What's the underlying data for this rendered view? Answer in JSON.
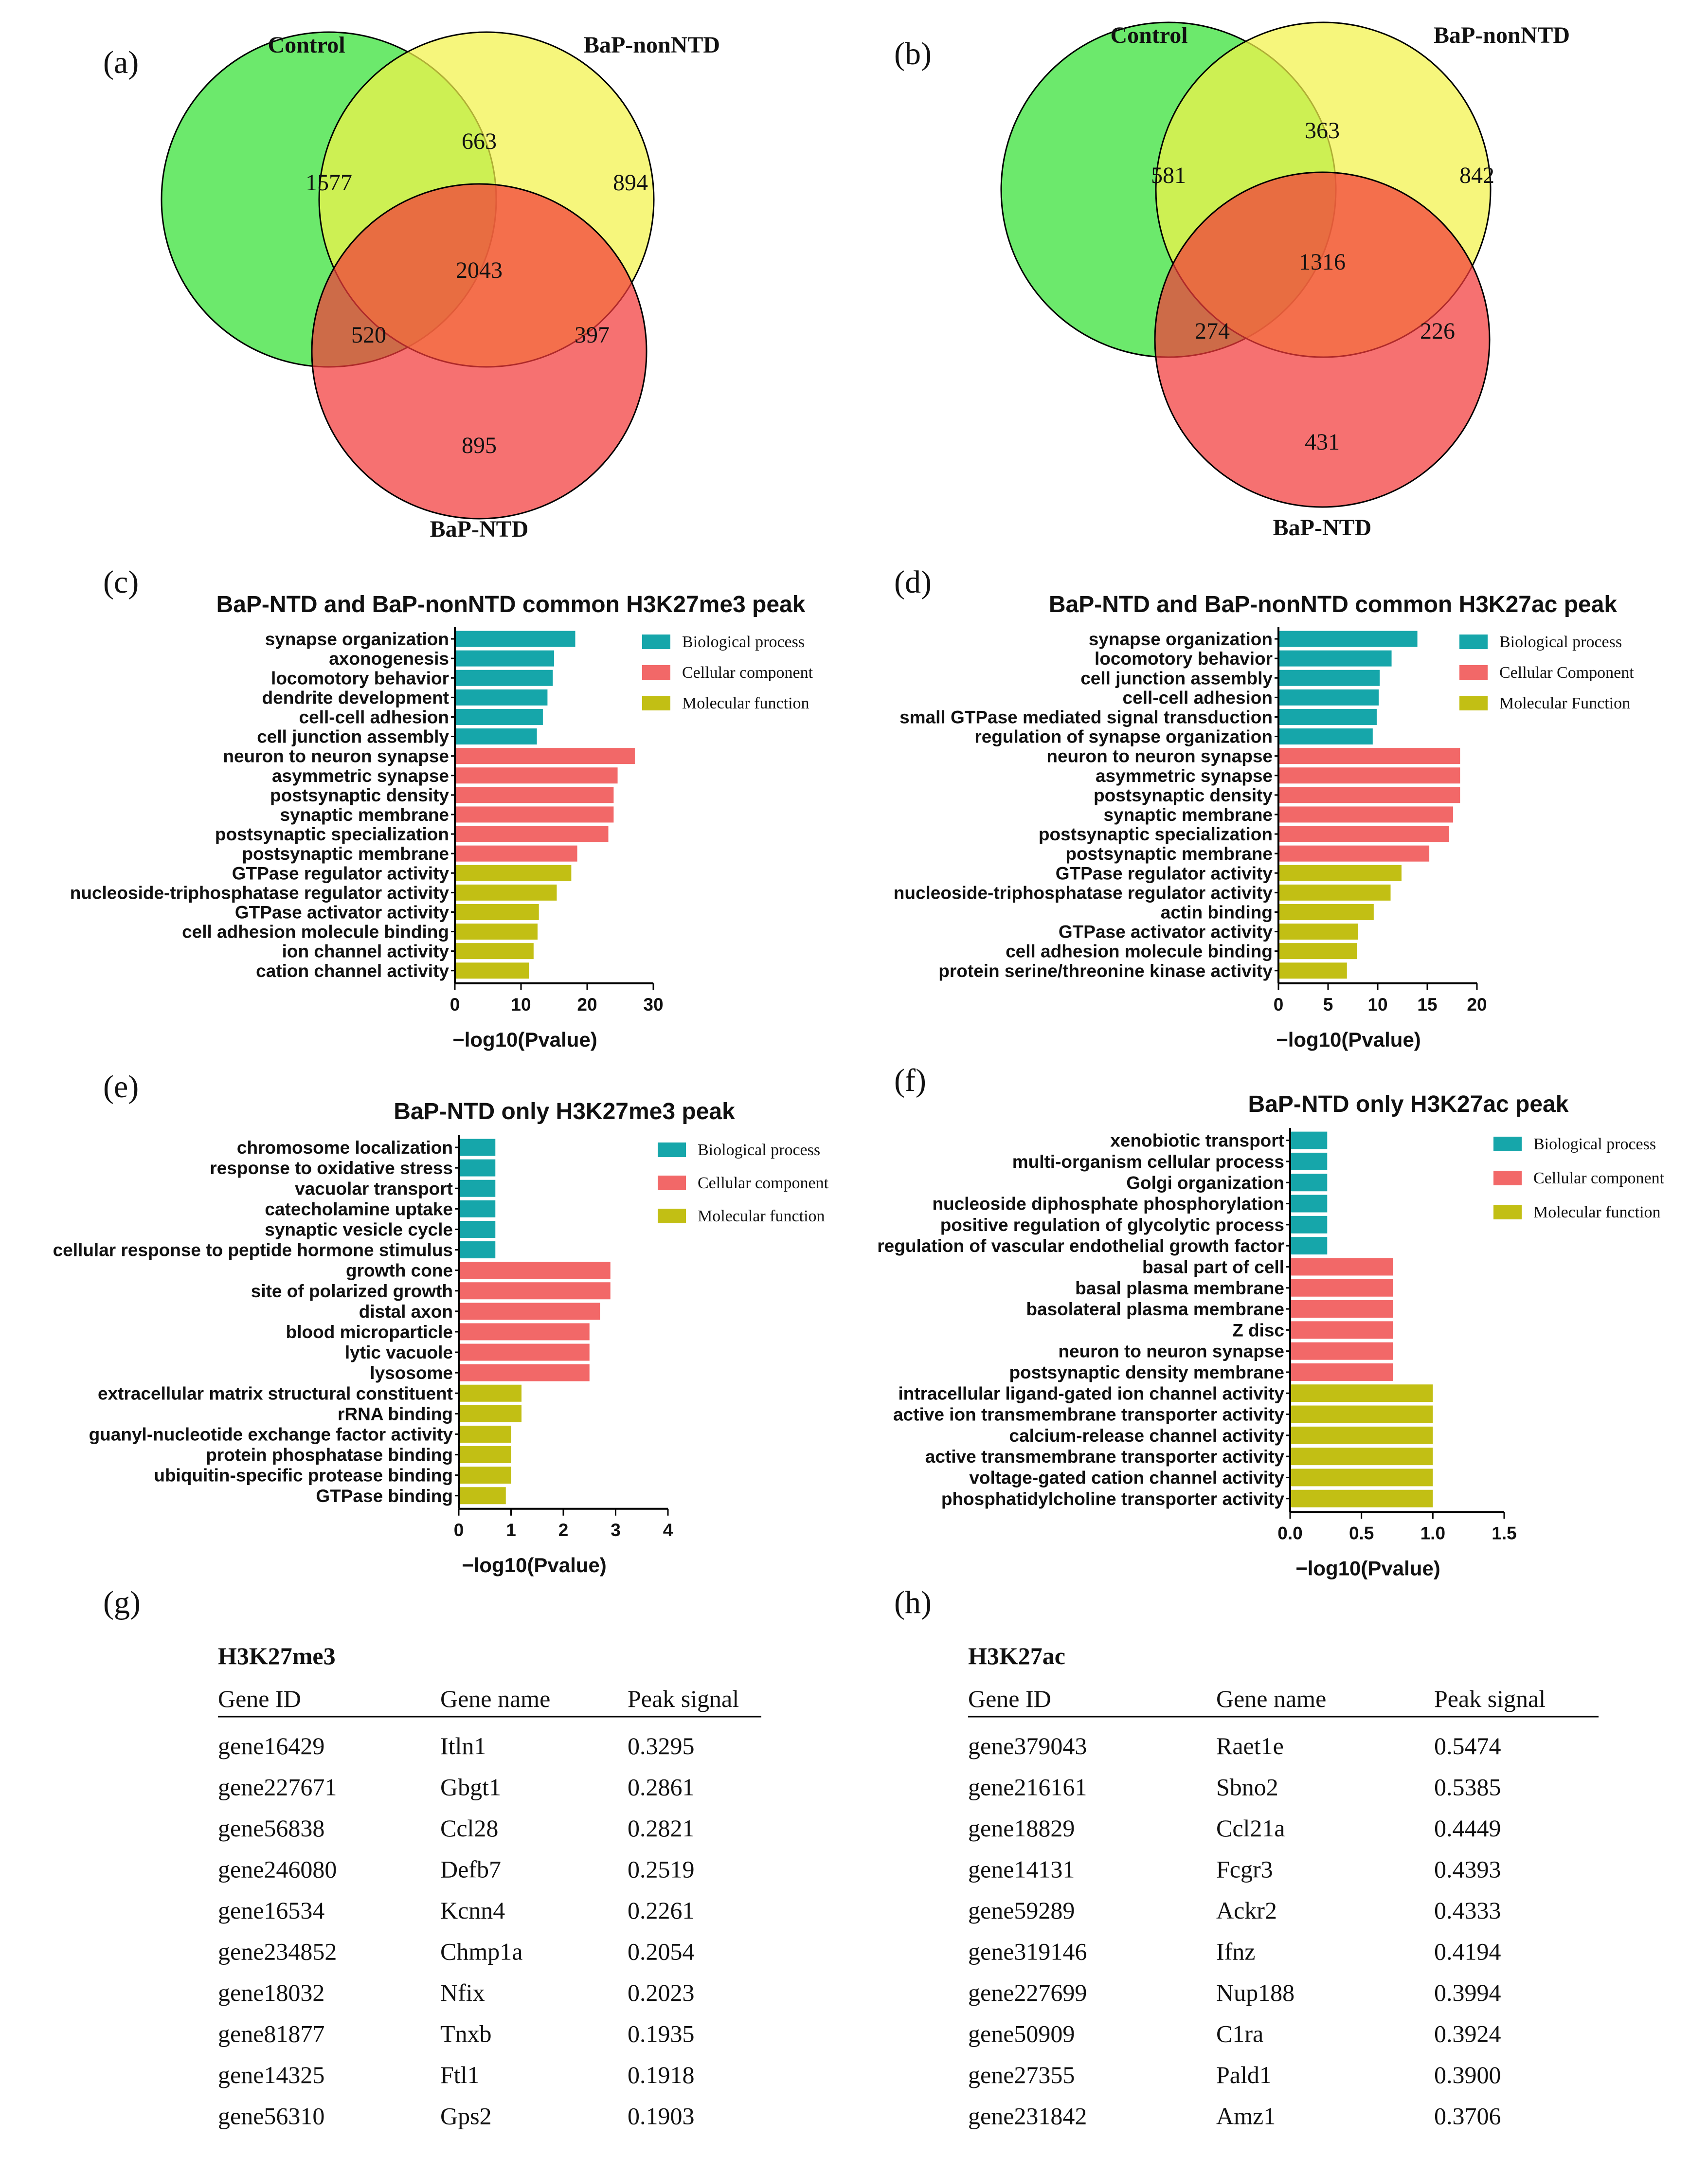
{
  "chart_data": [
    {
      "panel": "(a)",
      "type": "venn",
      "sets": [
        "Control",
        "BaP-nonNTD",
        "BaP-NTD"
      ],
      "regions": {
        "control_only": 1577,
        "nonntd_only": 894,
        "ntd_only": 895,
        "control_nonntd": 663,
        "control_ntd": 520,
        "nonntd_ntd": 397,
        "all_three": 2043
      }
    },
    {
      "panel": "(b)",
      "type": "venn",
      "sets": [
        "Control",
        "BaP-nonNTD",
        "BaP-NTD"
      ],
      "regions": {
        "control_only": 581,
        "nonntd_only": 842,
        "ntd_only": 431,
        "control_nonntd": 363,
        "control_ntd": 274,
        "nonntd_ntd": 226,
        "all_three": 1316
      }
    },
    {
      "panel": "(c)",
      "type": "bar",
      "orientation": "horizontal",
      "title": "BaP-NTD and BaP-nonNTD common H3K27me3 peak",
      "xlabel": "−log10(Pvalue)",
      "xlim": [
        0,
        30
      ],
      "xticks": [
        "0",
        "10",
        "20",
        "30"
      ],
      "legend": [
        "Biological process",
        "Cellular component",
        "Molecular function"
      ],
      "categories": [
        "synapse organization",
        "axonogenesis",
        "locomotory behavior",
        "dendrite development",
        "cell-cell adhesion",
        "cell junction assembly",
        "neuron to neuron synapse",
        "asymmetric synapse",
        "postsynaptic density",
        "synaptic membrane",
        "postsynaptic specialization",
        "postsynaptic membrane",
        "GTPase regulator activity",
        "nucleoside-triphosphatase regulator activity",
        "GTPase activator activity",
        "cell adhesion molecule binding",
        "ion channel activity",
        "cation channel activity"
      ],
      "values": [
        18.2,
        15.0,
        14.8,
        14.0,
        13.3,
        12.4,
        27.2,
        24.6,
        24.0,
        24.0,
        23.2,
        18.5,
        17.6,
        15.4,
        12.7,
        12.5,
        11.9,
        11.2
      ],
      "groups": [
        0,
        0,
        0,
        0,
        0,
        0,
        1,
        1,
        1,
        1,
        1,
        1,
        2,
        2,
        2,
        2,
        2,
        2
      ]
    },
    {
      "panel": "(d)",
      "type": "bar",
      "orientation": "horizontal",
      "title": "BaP-NTD and BaP-nonNTD common H3K27ac peak",
      "xlabel": "−log10(Pvalue)",
      "xlim": [
        0,
        20
      ],
      "xticks": [
        "0",
        "5",
        "10",
        "15",
        "20"
      ],
      "legend": [
        "Biological process",
        "Cellular Component",
        "Molecular Function"
      ],
      "categories": [
        "synapse organization",
        "locomotory behavior",
        "cell junction assembly",
        "cell-cell adhesion",
        "small GTPase mediated signal transduction",
        "regulation of synapse organization",
        "neuron to neuron synapse",
        "asymmetric synapse",
        "postsynaptic density",
        "synaptic membrane",
        "postsynaptic specialization",
        "postsynaptic membrane",
        "GTPase regulator activity",
        "nucleoside-triphosphatase regulator activity",
        "actin binding",
        "GTPase activator activity",
        "cell adhesion molecule binding",
        "protein serine/threonine kinase activity"
      ],
      "values": [
        14.0,
        11.4,
        10.2,
        10.1,
        9.9,
        9.5,
        18.3,
        18.3,
        18.3,
        17.6,
        17.2,
        15.2,
        12.4,
        11.3,
        9.6,
        8.0,
        7.9,
        6.9
      ],
      "groups": [
        0,
        0,
        0,
        0,
        0,
        0,
        1,
        1,
        1,
        1,
        1,
        1,
        2,
        2,
        2,
        2,
        2,
        2
      ]
    },
    {
      "panel": "(e)",
      "type": "bar",
      "orientation": "horizontal",
      "title": "BaP-NTD only H3K27me3 peak",
      "xlabel": "−log10(Pvalue)",
      "xlim": [
        0,
        4
      ],
      "xticks": [
        "0",
        "1",
        "2",
        "3",
        "4"
      ],
      "legend": [
        "Biological process",
        "Cellular component",
        "Molecular function"
      ],
      "categories": [
        "chromosome localization",
        "response to oxidative stress",
        "vacuolar transport",
        "catecholamine uptake",
        "synaptic vesicle cycle",
        "cellular response to peptide hormone stimulus",
        "growth cone",
        "site of polarized growth",
        "distal axon",
        "blood microparticle",
        "lytic vacuole",
        "lysosome",
        "extracellular matrix structural constituent",
        "rRNA binding",
        "guanyl-nucleotide exchange factor activity",
        "protein phosphatase binding",
        "ubiquitin-specific protease binding",
        "GTPase binding"
      ],
      "values": [
        0.7,
        0.7,
        0.7,
        0.7,
        0.7,
        0.7,
        2.9,
        2.9,
        2.7,
        2.5,
        2.5,
        2.5,
        1.2,
        1.2,
        1.0,
        1.0,
        1.0,
        0.9
      ],
      "groups": [
        0,
        0,
        0,
        0,
        0,
        0,
        1,
        1,
        1,
        1,
        1,
        1,
        2,
        2,
        2,
        2,
        2,
        2
      ]
    },
    {
      "panel": "(f)",
      "type": "bar",
      "orientation": "horizontal",
      "title": "BaP-NTD only H3K27ac peak",
      "xlabel": "−log10(Pvalue)",
      "xlim": [
        0,
        1.5
      ],
      "xticks": [
        "0.0",
        "0.5",
        "1.0",
        "1.5"
      ],
      "legend": [
        "Biological process",
        "Cellular component",
        "Molecular function"
      ],
      "categories": [
        "xenobiotic transport",
        "multi-organism cellular process",
        "Golgi organization",
        "nucleoside diphosphate phosphorylation",
        "positive regulation of glycolytic process",
        "regulation of vascular endothelial growth factor",
        "basal part of cell",
        "basal plasma membrane",
        "basolateral plasma membrane",
        "Z disc",
        "neuron to neuron synapse",
        "postsynaptic density membrane",
        "intracellular ligand-gated ion channel activity",
        "active ion transmembrane transporter activity",
        "calcium-release channel activity",
        "active transmembrane transporter activity",
        "voltage-gated cation channel activity",
        "phosphatidylcholine transporter activity"
      ],
      "values": [
        0.26,
        0.26,
        0.26,
        0.26,
        0.26,
        0.26,
        0.72,
        0.72,
        0.72,
        0.72,
        0.72,
        0.72,
        1.0,
        1.0,
        1.0,
        1.0,
        1.0,
        1.0
      ],
      "groups": [
        0,
        0,
        0,
        0,
        0,
        0,
        1,
        1,
        1,
        1,
        1,
        1,
        2,
        2,
        2,
        2,
        2,
        2
      ]
    },
    {
      "panel": "(g)",
      "type": "table",
      "title": "H3K27me3",
      "columns": [
        "Gene ID",
        "Gene name",
        "Peak signal"
      ],
      "rows": [
        [
          "gene16429",
          "Itln1",
          "0.3295"
        ],
        [
          "gene227671",
          "Gbgt1",
          "0.2861"
        ],
        [
          "gene56838",
          "Ccl28",
          "0.2821"
        ],
        [
          "gene246080",
          "Defb7",
          "0.2519"
        ],
        [
          "gene16534",
          "Kcnn4",
          "0.2261"
        ],
        [
          "gene234852",
          "Chmp1a",
          "0.2054"
        ],
        [
          "gene18032",
          "Nfix",
          "0.2023"
        ],
        [
          "gene81877",
          "Tnxb",
          "0.1935"
        ],
        [
          "gene14325",
          "Ftl1",
          "0.1918"
        ],
        [
          "gene56310",
          "Gps2",
          "0.1903"
        ]
      ]
    },
    {
      "panel": "(h)",
      "type": "table",
      "title": "H3K27ac",
      "columns": [
        "Gene ID",
        "Gene name",
        "Peak signal"
      ],
      "rows": [
        [
          "gene379043",
          "Raet1e",
          "0.5474"
        ],
        [
          "gene216161",
          "Sbno2",
          "0.5385"
        ],
        [
          "gene18829",
          "Ccl21a",
          "0.4449"
        ],
        [
          "gene14131",
          "Fcgr3",
          "0.4393"
        ],
        [
          "gene59289",
          "Ackr2",
          "0.4333"
        ],
        [
          "gene319146",
          "Ifnz",
          "0.4194"
        ],
        [
          "gene227699",
          "Nup188",
          "0.3994"
        ],
        [
          "gene50909",
          "C1ra",
          "0.3924"
        ],
        [
          "gene27355",
          "Pald1",
          "0.3900"
        ],
        [
          "gene231842",
          "Amz1",
          "0.3706"
        ]
      ]
    }
  ],
  "colors": {
    "control": "#33e033",
    "nonntd": "#f2f24a",
    "ntd": "#f23a3a",
    "biological": "#16a6aa",
    "cellular": "#f26868",
    "molecular": "#c2bf14"
  }
}
